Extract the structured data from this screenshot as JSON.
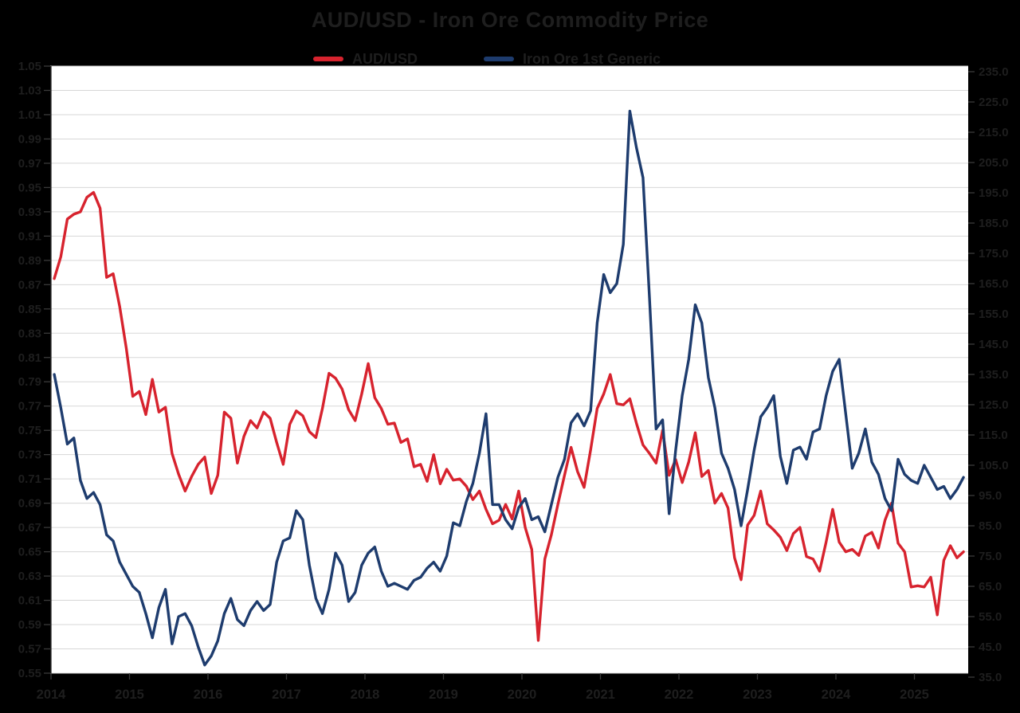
{
  "title": "AUD/USD - Iron Ore Commodity Price",
  "colors": {
    "background": "#000000",
    "plot_background": "#ffffff",
    "gridline": "#d7d7d7",
    "axis_text": "#1e1e1e",
    "tick_mark": "#3a3a3a",
    "aud_usd_red": "#d7232e",
    "iron_ore_blue": "#1e3c6e"
  },
  "legend": {
    "items": [
      {
        "label": "AUD/USD",
        "color": "#d7232e"
      },
      {
        "label": "Iron Ore 1st Generic",
        "color": "#1e3c6e"
      }
    ]
  },
  "chart_data": {
    "type": "line",
    "title": "AUD/USD - Iron Ore Commodity Price",
    "x_tick_labels": [
      "2014",
      "2015",
      "2016",
      "2017",
      "2018",
      "2019",
      "2020",
      "2021",
      "2022",
      "2023",
      "2024",
      "2025"
    ],
    "x_range_years": [
      2014.0,
      2025.7
    ],
    "grid": "horizontal",
    "legend_position": "top",
    "left_axis": {
      "series": "AUD/USD",
      "min": 0.55,
      "max": 1.05,
      "step": 0.02,
      "tick_labels": [
        "1.05",
        "1.03",
        "1.01",
        "0.99",
        "0.97",
        "0.95",
        "0.93",
        "0.91",
        "0.89",
        "0.87",
        "0.85",
        "0.83",
        "0.81",
        "0.79",
        "0.77",
        "0.75",
        "0.73",
        "0.71",
        "0.69",
        "0.67",
        "0.65",
        "0.63",
        "0.61",
        "0.59",
        "0.57",
        "0.55"
      ]
    },
    "right_axis": {
      "series": "Iron Ore 1st Generic",
      "min": 35.0,
      "max": 235.0,
      "step": 10.0,
      "tick_labels": [
        "235.0",
        "225.0",
        "215.0",
        "205.0",
        "195.0",
        "185.0",
        "175.0",
        "165.0",
        "155.0",
        "145.0",
        "135.0",
        "125.0",
        "115.0",
        "105.0",
        "95.0",
        "85.0",
        "75.0",
        "65.0",
        "55.0",
        "45.0",
        "35.0"
      ]
    },
    "sampling": {
      "start": "2014-01",
      "frequency": "monthly",
      "end": "2025-08"
    },
    "series": [
      {
        "name": "AUD/USD",
        "axis": "left",
        "color": "#d7232e",
        "values": [
          0.875,
          0.893,
          0.924,
          0.928,
          0.93,
          0.942,
          0.946,
          0.933,
          0.876,
          0.879,
          0.852,
          0.818,
          0.778,
          0.782,
          0.763,
          0.792,
          0.765,
          0.769,
          0.731,
          0.714,
          0.7,
          0.712,
          0.722,
          0.728,
          0.698,
          0.713,
          0.765,
          0.76,
          0.723,
          0.745,
          0.758,
          0.752,
          0.765,
          0.76,
          0.74,
          0.722,
          0.755,
          0.766,
          0.762,
          0.749,
          0.744,
          0.768,
          0.797,
          0.793,
          0.784,
          0.767,
          0.758,
          0.78,
          0.805,
          0.777,
          0.768,
          0.755,
          0.756,
          0.74,
          0.743,
          0.72,
          0.722,
          0.708,
          0.73,
          0.706,
          0.718,
          0.709,
          0.71,
          0.704,
          0.693,
          0.7,
          0.685,
          0.673,
          0.676,
          0.689,
          0.677,
          0.7,
          0.67,
          0.652,
          0.577,
          0.644,
          0.664,
          0.689,
          0.713,
          0.736,
          0.716,
          0.703,
          0.734,
          0.768,
          0.78,
          0.796,
          0.772,
          0.771,
          0.776,
          0.756,
          0.738,
          0.731,
          0.723,
          0.75,
          0.713,
          0.726,
          0.707,
          0.724,
          0.748,
          0.712,
          0.717,
          0.69,
          0.698,
          0.686,
          0.645,
          0.627,
          0.672,
          0.68,
          0.7,
          0.673,
          0.668,
          0.662,
          0.651,
          0.665,
          0.67,
          0.646,
          0.644,
          0.634,
          0.658,
          0.685,
          0.658,
          0.65,
          0.652,
          0.647,
          0.663,
          0.666,
          0.653,
          0.676,
          0.69,
          0.657,
          0.65,
          0.621,
          0.622,
          0.621,
          0.629,
          0.598,
          0.643,
          0.655,
          0.645,
          0.65
        ]
      },
      {
        "name": "Iron Ore 1st Generic",
        "axis": "right",
        "color": "#1e3c6e",
        "values": [
          135,
          124,
          112,
          114,
          100,
          94,
          96,
          92,
          82,
          80,
          73,
          69,
          65,
          63,
          56,
          48,
          58,
          64,
          46,
          55,
          56,
          52,
          45,
          39,
          42,
          47,
          56,
          61,
          54,
          52,
          57,
          60,
          57,
          59,
          73,
          80,
          81,
          90,
          87,
          72,
          61,
          56,
          64,
          76,
          72,
          60,
          63,
          72,
          76,
          78,
          70,
          65,
          66,
          65,
          64,
          67,
          68,
          71,
          73,
          70,
          75,
          86,
          85,
          93,
          99,
          109,
          122,
          92,
          92,
          87,
          84,
          91,
          94,
          87,
          88,
          83,
          92,
          101,
          107,
          119,
          122,
          118,
          123,
          152,
          168,
          162,
          165,
          178,
          222,
          210,
          200,
          160,
          117,
          120,
          89,
          110,
          128,
          140,
          158,
          152,
          134,
          124,
          109,
          104,
          97,
          85,
          97,
          110,
          121,
          124,
          128,
          108,
          99,
          110,
          111,
          107,
          116,
          117,
          128,
          136,
          140,
          122,
          104,
          109,
          117,
          106,
          102,
          94,
          90,
          107,
          102,
          100,
          99,
          105,
          101,
          97,
          98,
          94,
          97,
          101
        ]
      }
    ]
  }
}
